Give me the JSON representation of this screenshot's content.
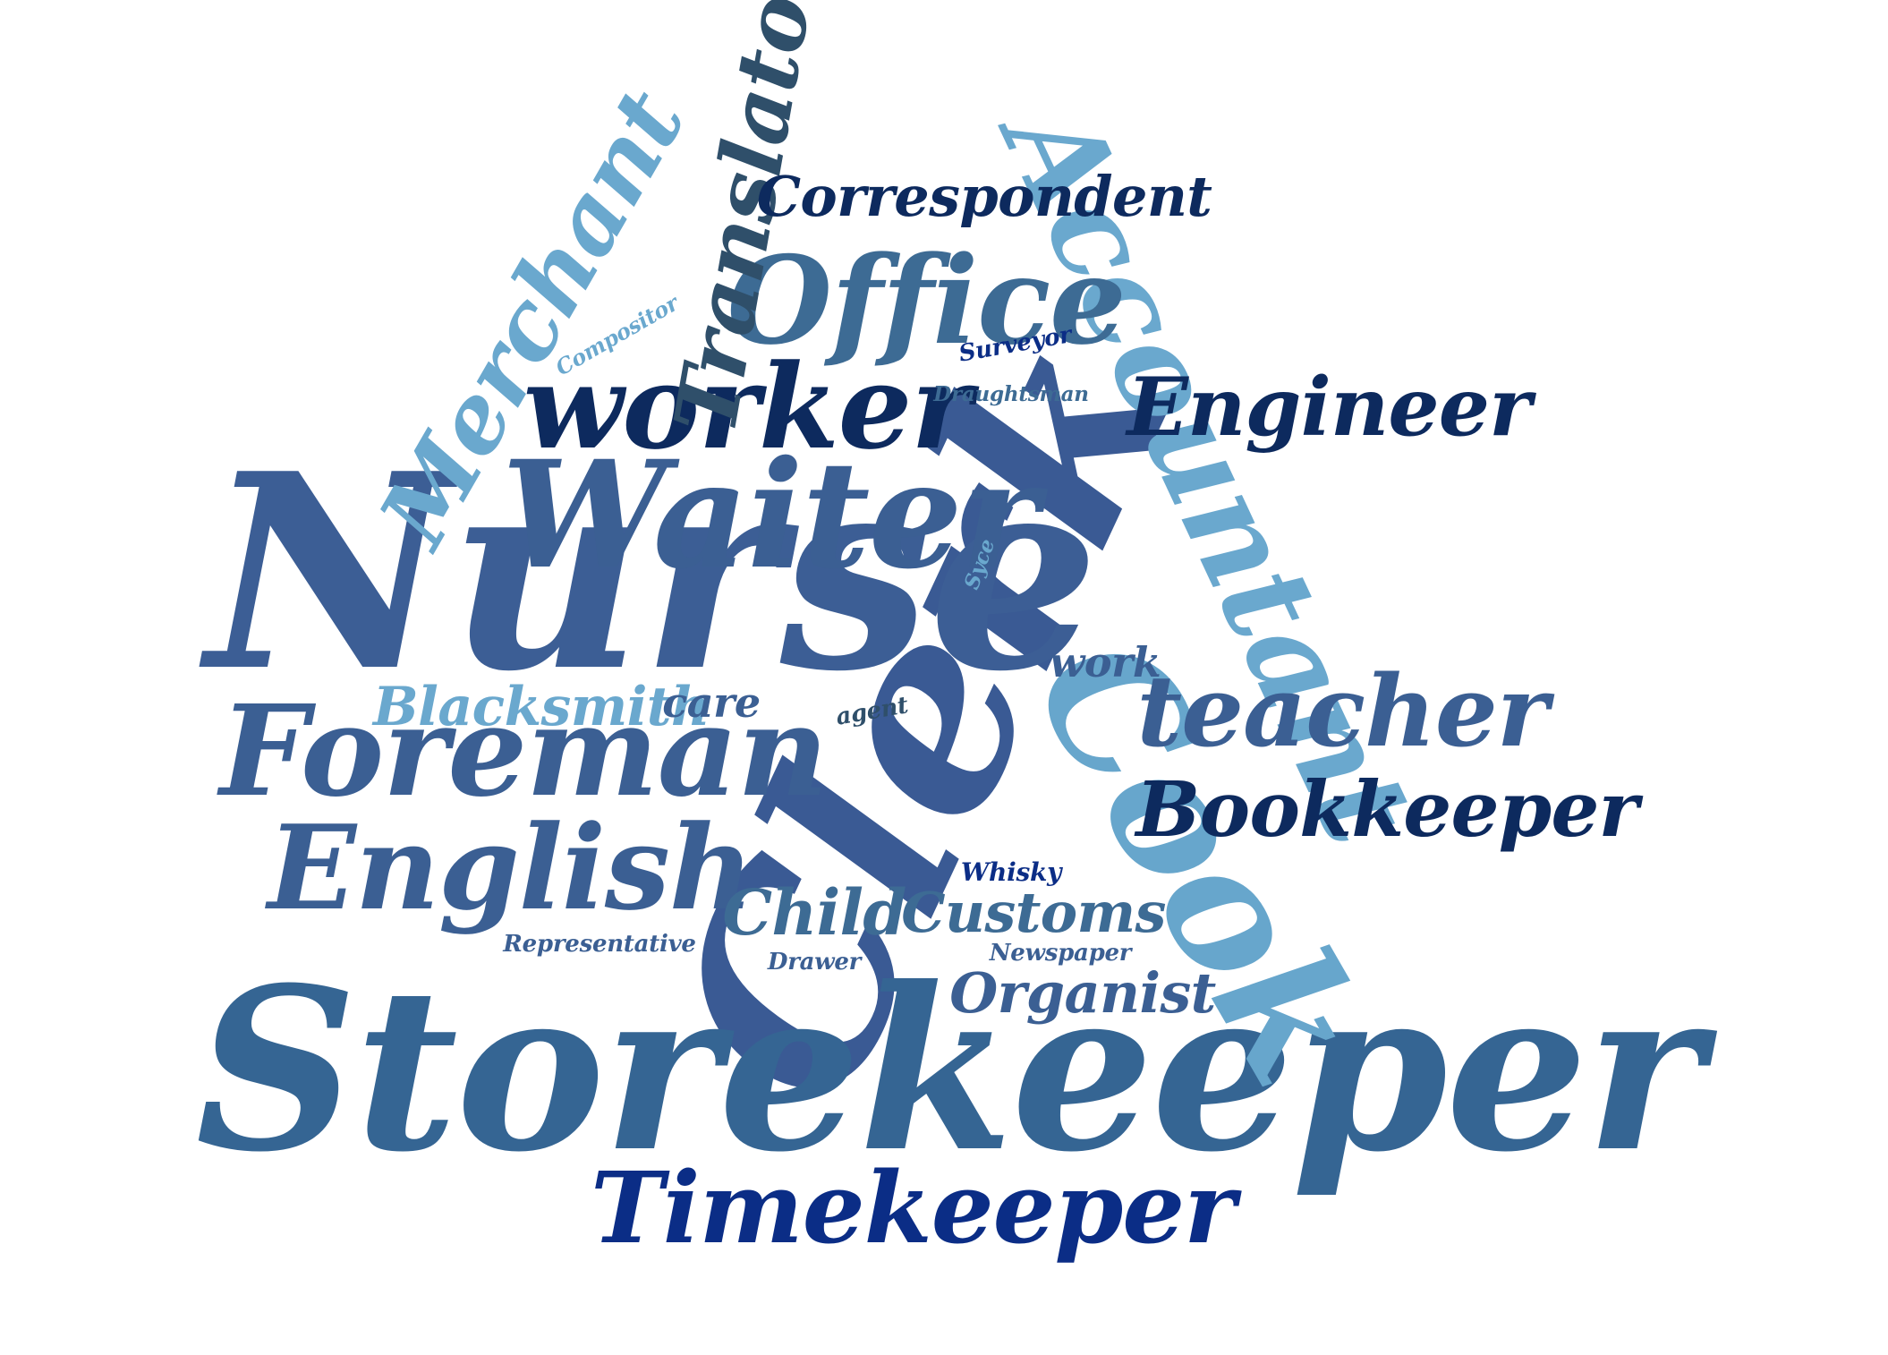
{
  "word_cloud": {
    "words": [
      {
        "text": "Clerk",
        "color": "#3a5a94",
        "rotation": -65,
        "weight": 10
      },
      {
        "text": "Nurse",
        "color": "#3c5e95",
        "rotation": 0,
        "weight": 9.5
      },
      {
        "text": "Storekeeper",
        "color": "#356593",
        "rotation": 0,
        "weight": 8
      },
      {
        "text": "Cook",
        "color": "#67a6cc",
        "rotation": 60,
        "weight": 7
      },
      {
        "text": "Waiter",
        "color": "#3b5f93",
        "rotation": 0,
        "weight": 6
      },
      {
        "text": "Accountant",
        "color": "#6aa8ce",
        "rotation": 65,
        "weight": 6
      },
      {
        "text": "Foreman",
        "color": "#3b5f93",
        "rotation": 0,
        "weight": 5.5
      },
      {
        "text": "worker",
        "color": "#0d2a5e",
        "rotation": 0,
        "weight": 5
      },
      {
        "text": "English",
        "color": "#3b5f93",
        "rotation": 0,
        "weight": 5
      },
      {
        "text": "Timekeeper",
        "color": "#0b2d86",
        "rotation": 0,
        "weight": 5
      },
      {
        "text": "Office",
        "color": "#3d6b94",
        "rotation": 0,
        "weight": 4.8
      },
      {
        "text": "Merchant",
        "color": "#6aa8ce",
        "rotation": -60,
        "weight": 4.5
      },
      {
        "text": "Translator",
        "color": "#2f4f6a",
        "rotation": -80,
        "weight": 4.5
      },
      {
        "text": "teacher",
        "color": "#3b5f93",
        "rotation": 0,
        "weight": 4.2
      },
      {
        "text": "Engineer",
        "color": "#0d2a5e",
        "rotation": 0,
        "weight": 3.8
      },
      {
        "text": "Bookkeeper",
        "color": "#0d2a5e",
        "rotation": 0,
        "weight": 3.5
      },
      {
        "text": "Correspondent",
        "color": "#0d2a5e",
        "rotation": 0,
        "weight": 2.8
      },
      {
        "text": "Blacksmith",
        "color": "#6aa8ce",
        "rotation": 0,
        "weight": 2.8
      },
      {
        "text": "Child",
        "color": "#3d6b94",
        "rotation": 0,
        "weight": 2.8
      },
      {
        "text": "Customs",
        "color": "#3d6b94",
        "rotation": 0,
        "weight": 2.8
      },
      {
        "text": "Organist",
        "color": "#3b5f93",
        "rotation": 0,
        "weight": 2.8
      },
      {
        "text": "work",
        "color": "#3b5f93",
        "rotation": 0,
        "weight": 2.2
      },
      {
        "text": "care",
        "color": "#3b5f93",
        "rotation": 0,
        "weight": 2.2
      },
      {
        "text": "Compositor",
        "color": "#6aa8ce",
        "rotation": -30,
        "weight": 1.4
      },
      {
        "text": "Surveyor",
        "color": "#0b2d86",
        "rotation": -10,
        "weight": 1.4
      },
      {
        "text": "Draughtsman",
        "color": "#3d6b94",
        "rotation": 0,
        "weight": 1.4
      },
      {
        "text": "Syce",
        "color": "#6aa8ce",
        "rotation": -70,
        "weight": 1.2
      },
      {
        "text": "agent",
        "color": "#2f4f6a",
        "rotation": -10,
        "weight": 1.3
      },
      {
        "text": "Whisky",
        "color": "#0b2d86",
        "rotation": 0,
        "weight": 1.3
      },
      {
        "text": "Representative",
        "color": "#3b5f93",
        "rotation": 0,
        "weight": 1.3
      },
      {
        "text": "Drawer",
        "color": "#3b5f93",
        "rotation": 0,
        "weight": 1.3
      },
      {
        "text": "Newspaper",
        "color": "#3b5f93",
        "rotation": 0,
        "weight": 1.3
      }
    ]
  }
}
